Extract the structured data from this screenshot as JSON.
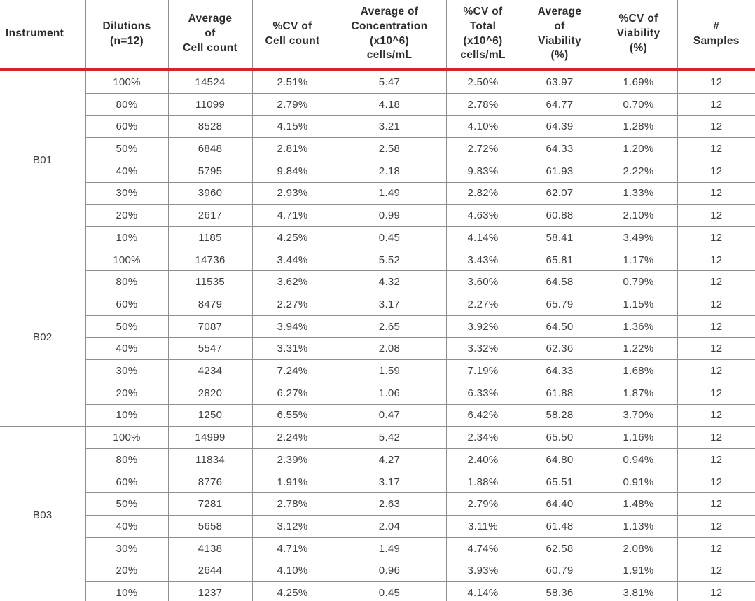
{
  "colors": {
    "accent_red": "#d7232b",
    "gridline": "#8e8e8e",
    "header_text": "#2d2d2d",
    "body_text": "#3d3d3d"
  },
  "chart_data": {
    "type": "table",
    "title": "Instrument dilution precision table",
    "columns": [
      "Instrument",
      "Dilutions\n(n=12)",
      "Average\nof\nCell count",
      "%CV of\nCell count",
      "Average of\nConcentration\n(x10^6)\ncells/mL",
      "%CV of\nTotal\n(x10^6)\ncells/mL",
      "Average\nof\nViability\n(%)",
      "%CV of\nViability\n(%)",
      "#\nSamples"
    ],
    "groups": [
      {
        "instrument": "B01",
        "rows": [
          [
            "100%",
            "14524",
            "2.51%",
            "5.47",
            "2.50%",
            "63.97",
            "1.69%",
            "12"
          ],
          [
            "80%",
            "11099",
            "2.79%",
            "4.18",
            "2.78%",
            "64.77",
            "0.70%",
            "12"
          ],
          [
            "60%",
            "8528",
            "4.15%",
            "3.21",
            "4.10%",
            "64.39",
            "1.28%",
            "12"
          ],
          [
            "50%",
            "6848",
            "2.81%",
            "2.58",
            "2.72%",
            "64.33",
            "1.20%",
            "12"
          ],
          [
            "40%",
            "5795",
            "9.84%",
            "2.18",
            "9.83%",
            "61.93",
            "2.22%",
            "12"
          ],
          [
            "30%",
            "3960",
            "2.93%",
            "1.49",
            "2.82%",
            "62.07",
            "1.33%",
            "12"
          ],
          [
            "20%",
            "2617",
            "4.71%",
            "0.99",
            "4.63%",
            "60.88",
            "2.10%",
            "12"
          ],
          [
            "10%",
            "1185",
            "4.25%",
            "0.45",
            "4.14%",
            "58.41",
            "3.49%",
            "12"
          ]
        ]
      },
      {
        "instrument": "B02",
        "rows": [
          [
            "100%",
            "14736",
            "3.44%",
            "5.52",
            "3.43%",
            "65.81",
            "1.17%",
            "12"
          ],
          [
            "80%",
            "11535",
            "3.62%",
            "4.32",
            "3.60%",
            "64.58",
            "0.79%",
            "12"
          ],
          [
            "60%",
            "8479",
            "2.27%",
            "3.17",
            "2.27%",
            "65.79",
            "1.15%",
            "12"
          ],
          [
            "50%",
            "7087",
            "3.94%",
            "2.65",
            "3.92%",
            "64.50",
            "1.36%",
            "12"
          ],
          [
            "40%",
            "5547",
            "3.31%",
            "2.08",
            "3.32%",
            "62.36",
            "1.22%",
            "12"
          ],
          [
            "30%",
            "4234",
            "7.24%",
            "1.59",
            "7.19%",
            "64.33",
            "1.68%",
            "12"
          ],
          [
            "20%",
            "2820",
            "6.27%",
            "1.06",
            "6.33%",
            "61.88",
            "1.87%",
            "12"
          ],
          [
            "10%",
            "1250",
            "6.55%",
            "0.47",
            "6.42%",
            "58.28",
            "3.70%",
            "12"
          ]
        ]
      },
      {
        "instrument": "B03",
        "rows": [
          [
            "100%",
            "14999",
            "2.24%",
            "5.42",
            "2.34%",
            "65.50",
            "1.16%",
            "12"
          ],
          [
            "80%",
            "11834",
            "2.39%",
            "4.27",
            "2.40%",
            "64.80",
            "0.94%",
            "12"
          ],
          [
            "60%",
            "8776",
            "1.91%",
            "3.17",
            "1.88%",
            "65.51",
            "0.91%",
            "12"
          ],
          [
            "50%",
            "7281",
            "2.78%",
            "2.63",
            "2.79%",
            "64.40",
            "1.48%",
            "12"
          ],
          [
            "40%",
            "5658",
            "3.12%",
            "2.04",
            "3.11%",
            "61.48",
            "1.13%",
            "12"
          ],
          [
            "30%",
            "4138",
            "4.71%",
            "1.49",
            "4.74%",
            "62.58",
            "2.08%",
            "12"
          ],
          [
            "20%",
            "2644",
            "4.10%",
            "0.96",
            "3.93%",
            "60.79",
            "1.91%",
            "12"
          ],
          [
            "10%",
            "1237",
            "4.25%",
            "0.45",
            "4.14%",
            "58.36",
            "3.81%",
            "12"
          ]
        ]
      }
    ]
  }
}
